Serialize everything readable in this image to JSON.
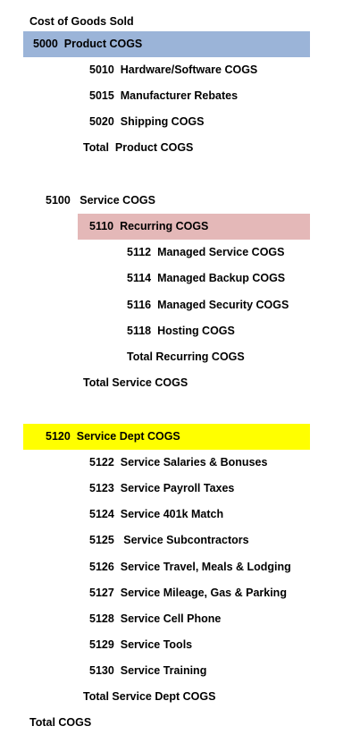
{
  "title": "Cost of Goods Sold",
  "highlight_colors": {
    "product_cogs": "#9bb4d8",
    "recurring_cogs": "#e4b8b8",
    "service_dept_cogs": "#ffff00"
  },
  "product": {
    "header": "5000  Product COGS",
    "items": [
      "5010  Hardware/Software COGS",
      "5015  Manufacturer Rebates",
      "5020  Shipping COGS"
    ],
    "total": "Total  Product COGS"
  },
  "service": {
    "header": "5100   Service COGS",
    "recurring": {
      "header": "5110  Recurring COGS",
      "items": [
        "5112  Managed Service COGS",
        "5114  Managed Backup COGS",
        "5116  Managed Security COGS",
        "5118  Hosting COGS"
      ],
      "total": "Total Recurring COGS"
    },
    "total": "Total Service COGS"
  },
  "service_dept": {
    "header": "5120  Service Dept COGS",
    "items": [
      "5122  Service Salaries & Bonuses",
      "5123  Service Payroll Taxes",
      "5124  Service 401k Match",
      "5125   Service Subcontractors",
      "5126  Service Travel, Meals & Lodging",
      "5127  Service Mileage, Gas & Parking",
      "5128  Service Cell Phone",
      "5129  Service Tools",
      "5130  Service Training"
    ],
    "total": "Total Service Dept COGS"
  },
  "grand_total": "Total COGS"
}
